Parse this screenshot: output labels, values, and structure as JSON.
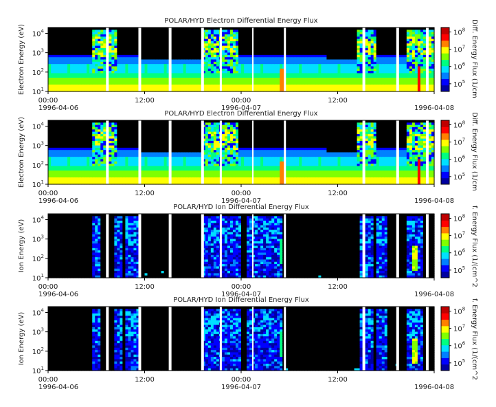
{
  "chart_data": [
    {
      "type": "heatmap",
      "title": "POLAR/HYD  Electron Differential Energy Flux",
      "ylabel": "Electron Energy (eV)",
      "zlabel": "Diff. Energy Flux (1/cm",
      "kind": "electron",
      "ylim": [
        10,
        20000
      ],
      "yscale": "log",
      "yticks": [
        {
          "b": "10",
          "e": "1"
        },
        {
          "b": "10",
          "e": "2"
        },
        {
          "b": "10",
          "e": "3"
        },
        {
          "b": "10",
          "e": "4"
        }
      ],
      "zticks": [
        {
          "b": "10",
          "e": "5"
        },
        {
          "b": "10",
          "e": "6"
        },
        {
          "b": "10",
          "e": "7"
        },
        {
          "b": "10",
          "e": "8"
        }
      ],
      "xticks": [
        {
          "time": "00:00",
          "date": "1996-04-06"
        },
        {
          "time": "12:00",
          "date": ""
        },
        {
          "time": "00:00",
          "date": "1996-04-07"
        },
        {
          "time": "12:00",
          "date": ""
        },
        {
          "time": "",
          "date": "1996-04-08"
        }
      ],
      "colorscale": [
        "#0000a0",
        "#0000ff",
        "#0080ff",
        "#00e0ff",
        "#00ff80",
        "#80ff00",
        "#ffff00",
        "#ff8000",
        "#ff0000",
        "#c00000"
      ]
    },
    {
      "type": "heatmap",
      "title": "POLAR/HYD  Electron Differential Energy Flux",
      "ylabel": "Electron Energy (eV)",
      "zlabel": "Diff. Energy Flux (1/cm",
      "kind": "electron",
      "ylim": [
        10,
        20000
      ],
      "yscale": "log",
      "yticks": [
        {
          "b": "10",
          "e": "1"
        },
        {
          "b": "10",
          "e": "2"
        },
        {
          "b": "10",
          "e": "3"
        },
        {
          "b": "10",
          "e": "4"
        }
      ],
      "zticks": [
        {
          "b": "10",
          "e": "5"
        },
        {
          "b": "10",
          "e": "6"
        },
        {
          "b": "10",
          "e": "7"
        },
        {
          "b": "10",
          "e": "8"
        }
      ],
      "xticks": [
        {
          "time": "00:00",
          "date": "1996-04-06"
        },
        {
          "time": "12:00",
          "date": ""
        },
        {
          "time": "00:00",
          "date": "1996-04-07"
        },
        {
          "time": "12:00",
          "date": ""
        },
        {
          "time": "",
          "date": "1996-04-08"
        }
      ],
      "colorscale": [
        "#0000a0",
        "#0000ff",
        "#0080ff",
        "#00e0ff",
        "#00ff80",
        "#80ff00",
        "#ffff00",
        "#ff8000",
        "#ff0000",
        "#c00000"
      ]
    },
    {
      "type": "heatmap",
      "title": "POLAR/HYD  Ion Differential Energy Flux",
      "ylabel": "Ion Energy (eV)",
      "zlabel": "f. Energy Flux (1/(cm^2",
      "kind": "ion",
      "ylim": [
        10,
        20000
      ],
      "yscale": "log",
      "yticks": [
        {
          "b": "10",
          "e": "1"
        },
        {
          "b": "10",
          "e": "2"
        },
        {
          "b": "10",
          "e": "3"
        },
        {
          "b": "10",
          "e": "4"
        }
      ],
      "zticks": [
        {
          "b": "10",
          "e": "5"
        },
        {
          "b": "10",
          "e": "6"
        },
        {
          "b": "10",
          "e": "7"
        },
        {
          "b": "10",
          "e": "8"
        }
      ],
      "xticks": [
        {
          "time": "00:00",
          "date": "1996-04-06"
        },
        {
          "time": "12:00",
          "date": ""
        },
        {
          "time": "00:00",
          "date": "1996-04-07"
        },
        {
          "time": "12:00",
          "date": ""
        },
        {
          "time": "",
          "date": "1996-04-08"
        }
      ],
      "colorscale": [
        "#0000a0",
        "#0000ff",
        "#0080ff",
        "#00e0ff",
        "#00ff80",
        "#80ff00",
        "#ffff00",
        "#ff8000",
        "#ff0000",
        "#c00000"
      ]
    },
    {
      "type": "heatmap",
      "title": "POLAR/HYD  Ion Differential Energy Flux",
      "ylabel": "Ion Energy (eV)",
      "zlabel": "f. Energy Flux (1/(cm^2",
      "kind": "ion",
      "ylim": [
        10,
        20000
      ],
      "yscale": "log",
      "yticks": [
        {
          "b": "10",
          "e": "1"
        },
        {
          "b": "10",
          "e": "2"
        },
        {
          "b": "10",
          "e": "3"
        },
        {
          "b": "10",
          "e": "4"
        }
      ],
      "zticks": [
        {
          "b": "10",
          "e": "5"
        },
        {
          "b": "10",
          "e": "6"
        },
        {
          "b": "10",
          "e": "7"
        },
        {
          "b": "10",
          "e": "8"
        }
      ],
      "xticks": [
        {
          "time": "00:00",
          "date": "1996-04-06"
        },
        {
          "time": "12:00",
          "date": ""
        },
        {
          "time": "00:00",
          "date": "1996-04-07"
        },
        {
          "time": "12:00",
          "date": ""
        },
        {
          "time": "",
          "date": "1996-04-08"
        }
      ],
      "colorscale": [
        "#0000a0",
        "#0000ff",
        "#0080ff",
        "#00e0ff",
        "#00ff80",
        "#80ff00",
        "#ffff00",
        "#ff8000",
        "#ff0000",
        "#c00000"
      ]
    }
  ]
}
